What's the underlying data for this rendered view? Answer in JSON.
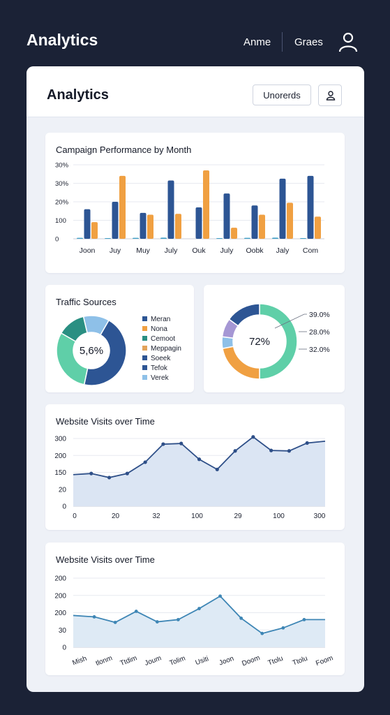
{
  "header": {
    "title": "Analytics",
    "nav_a": "Anme",
    "nav_b": "Graes",
    "user_icon": "user-icon"
  },
  "card": {
    "title": "Analytics",
    "button_label": "Unorerds",
    "button_icon": "user-icon"
  },
  "colors": {
    "navy": "#2d5594",
    "orange": "#f0a042",
    "teal": "#3f9fc6",
    "green": "#5fcfa8",
    "lightblue": "#8ec0e8",
    "purple": "#a597d4"
  },
  "campaign": {
    "title": "Campaign Performance by Month",
    "chart_data": {
      "type": "bar",
      "title": "Campaign Performance by Month",
      "ytick_labels": [
        "0",
        "100",
        "20%",
        "30%",
        "30%"
      ],
      "ylim": [
        0,
        400
      ],
      "categories": [
        "Joon",
        "Juy",
        "Muy",
        "July",
        "Ouk",
        "July",
        "Oobk",
        "Jaly",
        "Com"
      ],
      "series": [
        {
          "values": [
            5,
            4,
            5,
            6,
            0,
            4,
            5,
            6,
            4
          ]
        },
        {
          "values": [
            160,
            200,
            140,
            315,
            170,
            245,
            180,
            325,
            340
          ]
        },
        {
          "values": [
            90,
            340,
            130,
            135,
            370,
            60,
            130,
            195,
            120
          ]
        }
      ]
    }
  },
  "traffic": {
    "title": "Traffic Sources",
    "donut_label": "5,6%",
    "legend": [
      "Meran",
      "Nona",
      "Cemoot",
      "Meppagin",
      "Soeek",
      "Tefok",
      "Verek"
    ],
    "chart_data": {
      "type": "pie",
      "slices": [
        {
          "label": "Meran",
          "value": 45
        },
        {
          "label": "Verek",
          "value": 30
        },
        {
          "label": "Cemoot",
          "value": 13
        },
        {
          "label": "Nona",
          "value": 12
        }
      ]
    }
  },
  "ring": {
    "center_label": "72%",
    "annotations": [
      "39.0%",
      "28.0%",
      "32.0%"
    ],
    "chart_data": {
      "type": "pie",
      "slices": [
        {
          "value": 50
        },
        {
          "value": 22
        },
        {
          "value": 5
        },
        {
          "value": 8
        },
        {
          "value": 15
        }
      ]
    }
  },
  "visits1": {
    "title": "Website Visits over Time",
    "chart_data": {
      "type": "area",
      "title": "Website Visits over Time",
      "ytick_labels": [
        "0",
        "20",
        "150",
        "200",
        "300"
      ],
      "xtick_labels": [
        "0",
        "20",
        "32",
        "100",
        "29",
        "100",
        "300"
      ],
      "values": [
        140,
        145,
        127,
        145,
        195,
        275,
        278,
        208,
        163,
        245,
        307,
        247,
        245,
        280,
        288
      ],
      "ylim": [
        0,
        300
      ]
    }
  },
  "visits2": {
    "title": "Website Visits over Time",
    "chart_data": {
      "type": "area",
      "title": "Website Visits over Time",
      "ytick_labels": [
        "0",
        "30",
        "200",
        "200",
        "200"
      ],
      "xtick_labels": [
        "Mish",
        "tlonm",
        "Ttdim",
        "Joum",
        "Tolim",
        "Usiti",
        "Joon",
        "Doom",
        "Ttolu",
        "Ttolu",
        "Foom"
      ],
      "values": [
        115,
        110,
        90,
        130,
        92,
        100,
        140,
        185,
        105,
        50,
        70,
        100,
        100
      ],
      "ylim": [
        0,
        250
      ]
    }
  }
}
